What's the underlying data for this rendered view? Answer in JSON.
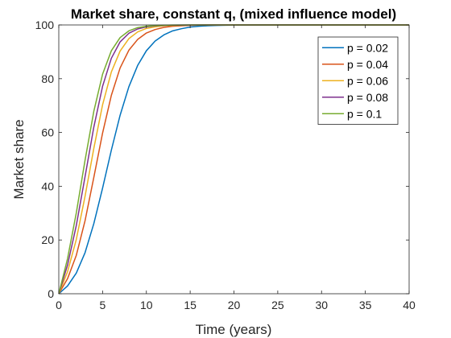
{
  "chart_data": {
    "type": "line",
    "title": "Market share, constant q, (mixed influence model)",
    "xlabel": "Time (years)",
    "ylabel": "Market share",
    "xlim": [
      0,
      40
    ],
    "ylim": [
      0,
      100
    ],
    "xticks": [
      0,
      5,
      10,
      15,
      20,
      25,
      30,
      35,
      40
    ],
    "yticks": [
      0,
      20,
      40,
      60,
      80,
      100
    ],
    "grid": false,
    "legend_position": "top-right",
    "x": [
      0,
      1,
      2,
      3,
      4,
      5,
      6,
      7,
      8,
      9,
      10,
      11,
      12,
      13,
      14,
      15,
      16,
      17,
      18,
      19,
      20,
      22,
      25,
      30,
      35,
      40
    ],
    "series": [
      {
        "name": "p = 0.02",
        "color": "#0072BD",
        "values": [
          0,
          2.9,
          7.7,
          15.3,
          26.1,
          39.3,
          53.4,
          66.4,
          77.0,
          84.9,
          90.4,
          94.0,
          96.3,
          97.8,
          98.6,
          99.2,
          99.5,
          99.7,
          99.8,
          99.9,
          99.94,
          99.98,
          100,
          100,
          100,
          100
        ]
      },
      {
        "name": "p = 0.04",
        "color": "#D95319",
        "values": [
          0,
          5.6,
          14.3,
          27.2,
          43.3,
          59.8,
          73.8,
          84.0,
          90.6,
          94.6,
          97.0,
          98.3,
          99.1,
          99.5,
          99.7,
          99.85,
          99.92,
          99.95,
          99.97,
          99.98,
          99.99,
          100,
          100,
          100,
          100,
          100
        ]
      },
      {
        "name": "p = 0.06",
        "color": "#EDB120",
        "values": [
          0,
          8.2,
          20.2,
          36.3,
          54.1,
          70.3,
          82.5,
          90.3,
          94.9,
          97.4,
          98.7,
          99.3,
          99.7,
          99.83,
          99.92,
          99.96,
          99.98,
          99.99,
          99.99,
          100,
          100,
          100,
          100,
          100,
          100,
          100
        ]
      },
      {
        "name": "p = 0.08",
        "color": "#7E2F8E",
        "values": [
          0,
          10.7,
          25.4,
          43.6,
          62.0,
          77.2,
          87.6,
          93.7,
          96.9,
          98.5,
          99.3,
          99.67,
          99.84,
          99.92,
          99.96,
          99.98,
          99.99,
          100,
          100,
          100,
          100,
          100,
          100,
          100,
          100,
          100
        ]
      },
      {
        "name": "p = 0.1",
        "color": "#77AC30",
        "values": [
          0,
          13.1,
          30.1,
          49.7,
          67.9,
          81.7,
          90.4,
          95.3,
          97.8,
          99.0,
          99.5,
          99.78,
          99.9,
          99.95,
          99.98,
          99.99,
          100,
          100,
          100,
          100,
          100,
          100,
          100,
          100,
          100,
          100
        ]
      }
    ]
  }
}
